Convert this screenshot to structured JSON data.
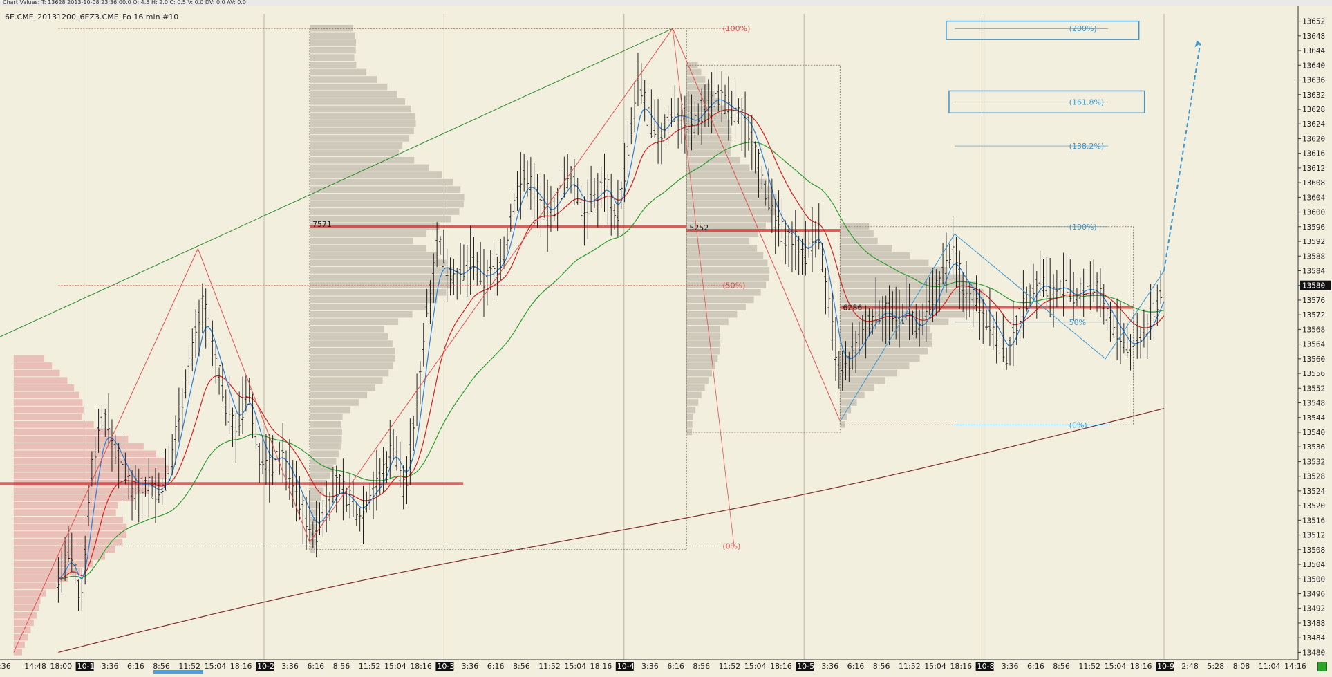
{
  "topbar": {
    "text": "Chart Values: T: 13628  2013-10-08  23:36:00.0  O: 4.5  H: 2.0  C: 0.5  V: 0.0  DV: 0.0  AV: 0.0"
  },
  "chart_title": "6E.CME_20131200_6EZ3.CME_Fo  16 min  #10",
  "colors": {
    "background": "#f3efdf",
    "bars": "#202020",
    "ema_fast": "#2a7fd6",
    "ema_mid": "#d21f1f",
    "ema_slow": "#2c9a2c",
    "ema_long": "#7a2c2c",
    "volume_profile": "#c7c2b4",
    "volume_profile_pink": "#e6b7b1",
    "poc_line": "#c83030",
    "fib_red": "#e05050",
    "fib_blue": "#3a97cf"
  },
  "icons": [
    "projection-arrow-icon",
    "fib-target-box-icon"
  ],
  "chart_data": {
    "type": "candlestick",
    "title": "",
    "price_axis": {
      "ticks": [
        "13652",
        "13648",
        "13644",
        "13640",
        "13636",
        "13632",
        "13628",
        "13624",
        "13620",
        "13616",
        "13612",
        "13608",
        "13604",
        "13600",
        "13596",
        "13592",
        "13588",
        "13584",
        "13580",
        "13576",
        "13572",
        "13568",
        "13564",
        "13560",
        "13556",
        "13552",
        "13548",
        "13544",
        "13540",
        "13536",
        "13532",
        "13528",
        "13524",
        "13520",
        "13516",
        "13512",
        "13508",
        "13504",
        "13500",
        "13496",
        "13492",
        "13488",
        "13484",
        "13480"
      ],
      "range": [
        13478,
        13654
      ],
      "last_price": "13580"
    },
    "time_axis": {
      "labels": [
        {
          "text": ":36",
          "day": false
        },
        {
          "text": "14:48",
          "day": false
        },
        {
          "text": "18:00",
          "day": false
        },
        {
          "text": "10-1",
          "day": true
        },
        {
          "text": "3:36",
          "day": false
        },
        {
          "text": "6:16",
          "day": false
        },
        {
          "text": "8:56",
          "day": false
        },
        {
          "text": "11:52",
          "day": false
        },
        {
          "text": "15:04",
          "day": false
        },
        {
          "text": "18:16",
          "day": false
        },
        {
          "text": "10-2",
          "day": true
        },
        {
          "text": "3:36",
          "day": false
        },
        {
          "text": "6:16",
          "day": false
        },
        {
          "text": "8:56",
          "day": false
        },
        {
          "text": "11:52",
          "day": false
        },
        {
          "text": "15:04",
          "day": false
        },
        {
          "text": "18:16",
          "day": false
        },
        {
          "text": "10-3",
          "day": true
        },
        {
          "text": "3:36",
          "day": false
        },
        {
          "text": "6:16",
          "day": false
        },
        {
          "text": "8:56",
          "day": false
        },
        {
          "text": "11:52",
          "day": false
        },
        {
          "text": "15:04",
          "day": false
        },
        {
          "text": "18:16",
          "day": false
        },
        {
          "text": "10-4",
          "day": true
        },
        {
          "text": "3:36",
          "day": false
        },
        {
          "text": "6:16",
          "day": false
        },
        {
          "text": "8:56",
          "day": false
        },
        {
          "text": "11:52",
          "day": false
        },
        {
          "text": "15:04",
          "day": false
        },
        {
          "text": "18:16",
          "day": false
        },
        {
          "text": "10-5",
          "day": true
        },
        {
          "text": "3:36",
          "day": false
        },
        {
          "text": "6:16",
          "day": false
        },
        {
          "text": "8:56",
          "day": false
        },
        {
          "text": "11:52",
          "day": false
        },
        {
          "text": "15:04",
          "day": false
        },
        {
          "text": "18:16",
          "day": false
        },
        {
          "text": "10-8",
          "day": true
        },
        {
          "text": "3:36",
          "day": false
        },
        {
          "text": "6:16",
          "day": false
        },
        {
          "text": "8:56",
          "day": false
        },
        {
          "text": "11:52",
          "day": false
        },
        {
          "text": "15:04",
          "day": false
        },
        {
          "text": "18:16",
          "day": false
        },
        {
          "text": "10-9",
          "day": true
        },
        {
          "text": "2:48",
          "day": false
        },
        {
          "text": "5:28",
          "day": false
        },
        {
          "text": "8:08",
          "day": false
        },
        {
          "text": "11:04",
          "day": false
        },
        {
          "text": "14:16",
          "day": false
        }
      ]
    },
    "session_separators": [
      2,
      9,
      16,
      23,
      30,
      37
    ],
    "price_path": [
      [
        0,
        13500
      ],
      [
        0.4,
        13508
      ],
      [
        0.8,
        13494
      ],
      [
        1.2,
        13530
      ],
      [
        1.6,
        13546
      ],
      [
        2.0,
        13536
      ],
      [
        2.4,
        13528
      ],
      [
        2.8,
        13524
      ],
      [
        3.2,
        13526
      ],
      [
        3.6,
        13523
      ],
      [
        4.0,
        13530
      ],
      [
        4.4,
        13548
      ],
      [
        4.8,
        13562
      ],
      [
        5.2,
        13576
      ],
      [
        5.6,
        13560
      ],
      [
        6.0,
        13548
      ],
      [
        6.4,
        13540
      ],
      [
        6.8,
        13552
      ],
      [
        7.2,
        13534
      ],
      [
        7.6,
        13530
      ],
      [
        8.0,
        13534
      ],
      [
        8.4,
        13526
      ],
      [
        8.8,
        13518
      ],
      [
        9.2,
        13512
      ],
      [
        9.6,
        13520
      ],
      [
        10.0,
        13526
      ],
      [
        10.4,
        13522
      ],
      [
        10.8,
        13517
      ],
      [
        11.2,
        13524
      ],
      [
        11.6,
        13528
      ],
      [
        12.0,
        13538
      ],
      [
        12.4,
        13524
      ],
      [
        12.8,
        13544
      ],
      [
        13.2,
        13574
      ],
      [
        13.6,
        13592
      ],
      [
        14.0,
        13584
      ],
      [
        14.4,
        13582
      ],
      [
        14.8,
        13587
      ],
      [
        15.2,
        13581
      ],
      [
        15.6,
        13584
      ],
      [
        16.0,
        13589
      ],
      [
        16.4,
        13606
      ],
      [
        16.8,
        13610
      ],
      [
        17.2,
        13603
      ],
      [
        17.6,
        13598
      ],
      [
        18.0,
        13606
      ],
      [
        18.4,
        13610
      ],
      [
        18.8,
        13600
      ],
      [
        19.2,
        13604
      ],
      [
        19.6,
        13608
      ],
      [
        20.0,
        13598
      ],
      [
        20.4,
        13616
      ],
      [
        20.8,
        13636
      ],
      [
        21.2,
        13624
      ],
      [
        21.6,
        13620
      ],
      [
        22.0,
        13628
      ],
      [
        22.4,
        13626
      ],
      [
        22.8,
        13624
      ],
      [
        23.2,
        13630
      ],
      [
        23.6,
        13632
      ],
      [
        24.0,
        13628
      ],
      [
        24.4,
        13626
      ],
      [
        24.8,
        13622
      ],
      [
        25.2,
        13610
      ],
      [
        25.6,
        13598
      ],
      [
        26.0,
        13594
      ],
      [
        26.4,
        13592
      ],
      [
        26.8,
        13588
      ],
      [
        27.2,
        13596
      ],
      [
        27.6,
        13574
      ],
      [
        28.0,
        13554
      ],
      [
        28.4,
        13560
      ],
      [
        28.8,
        13566
      ],
      [
        29.2,
        13572
      ],
      [
        29.6,
        13574
      ],
      [
        30.0,
        13570
      ],
      [
        30.4,
        13574
      ],
      [
        30.8,
        13566
      ],
      [
        31.2,
        13574
      ],
      [
        31.6,
        13582
      ],
      [
        32.0,
        13590
      ],
      [
        32.4,
        13580
      ],
      [
        32.8,
        13577
      ],
      [
        33.2,
        13572
      ],
      [
        33.6,
        13566
      ],
      [
        34.0,
        13560
      ],
      [
        34.4,
        13572
      ],
      [
        34.8,
        13578
      ],
      [
        35.2,
        13582
      ],
      [
        35.6,
        13578
      ],
      [
        36.0,
        13580
      ],
      [
        36.4,
        13576
      ],
      [
        36.8,
        13580
      ],
      [
        37.2,
        13578
      ],
      [
        37.6,
        13572
      ],
      [
        38.0,
        13566
      ],
      [
        38.4,
        13562
      ],
      [
        38.8,
        13566
      ],
      [
        39.2,
        13572
      ],
      [
        39.6,
        13580
      ]
    ],
    "indicators": [
      {
        "name": "EMA fast",
        "color_key": "ema_fast"
      },
      {
        "name": "EMA mid",
        "color_key": "ema_mid"
      },
      {
        "name": "EMA slow",
        "color_key": "ema_slow"
      },
      {
        "name": "EMA long",
        "color_key": "ema_long"
      }
    ],
    "volume_profiles": [
      {
        "poc_label": "7571",
        "poc_price": 13596
      },
      {
        "poc_label": "5252",
        "poc_price": 13595
      },
      {
        "poc_label": "6286",
        "poc_price": 13574
      }
    ],
    "fib_red": {
      "levels": [
        {
          "label": "(100%)",
          "price": 13650
        },
        {
          "label": "(50%)",
          "price": 13580
        },
        {
          "label": "(0%)",
          "price": 13509
        }
      ]
    },
    "fib_blue": {
      "levels": [
        {
          "label": "(200%)",
          "price": 13650
        },
        {
          "label": "(161.8%)",
          "price": 13630
        },
        {
          "label": "(138.2%)",
          "price": 13618
        },
        {
          "label": "(100%)",
          "price": 13596
        },
        {
          "label": "50%",
          "price": 13570
        },
        {
          "label": "(0%)",
          "price": 13542
        }
      ]
    }
  }
}
